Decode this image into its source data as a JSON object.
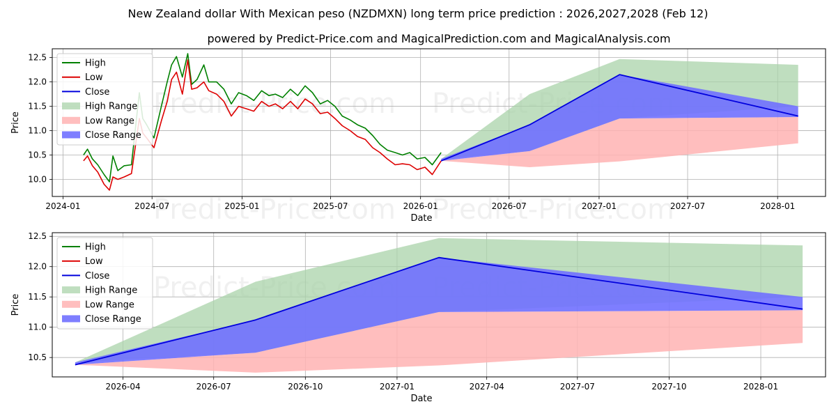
{
  "title": "New Zealand dollar With Mexican peso (NZDMXN) long term price prediction : 2026,2027,2028 (Feb 12)",
  "subtitle": "powered by Predict-Price.com and MagicalPrediction.com and MagicalAnalysis.com",
  "watermark": "Predict-Price.com",
  "colors": {
    "high": "#008000",
    "low": "#dd0000",
    "close": "#0000dd",
    "high_range": "#a9d3a9",
    "low_range": "#ffb3b3",
    "close_range": "#7070ff",
    "grid": "#b0b0b0"
  },
  "chart_data": [
    {
      "type": "line",
      "panel": "top",
      "xlabel": "Date",
      "ylabel": "Price",
      "xlim": [
        "2023-12-10",
        "2028-04-08"
      ],
      "ylim": [
        9.65,
        12.68
      ],
      "grid": true,
      "legend_location": "upper-left",
      "x_ticks": [
        {
          "date": "2024-01-01",
          "label": "2024-01"
        },
        {
          "date": "2024-07-01",
          "label": "2024-07"
        },
        {
          "date": "2025-01-01",
          "label": "2025-01"
        },
        {
          "date": "2025-07-01",
          "label": "2025-07"
        },
        {
          "date": "2026-01-01",
          "label": "2026-01"
        },
        {
          "date": "2026-07-01",
          "label": "2026-07"
        },
        {
          "date": "2027-01-01",
          "label": "2027-01"
        },
        {
          "date": "2027-07-01",
          "label": "2027-07"
        },
        {
          "date": "2028-01-01",
          "label": "2028-01"
        }
      ],
      "y_ticks": [
        {
          "value": 10.0,
          "label": "10.0"
        },
        {
          "value": 10.5,
          "label": "10.5"
        },
        {
          "value": 11.0,
          "label": "11.0"
        },
        {
          "value": 11.5,
          "label": "11.5"
        },
        {
          "value": 12.0,
          "label": "12.0"
        },
        {
          "value": 12.5,
          "label": "12.5"
        }
      ],
      "legend": [
        "High",
        "Low",
        "Close",
        "High Range",
        "Low Range",
        "Close Range"
      ],
      "historical": {
        "dates": [
          "2024-02-12",
          "2024-02-20",
          "2024-03-01",
          "2024-03-12",
          "2024-03-25",
          "2024-04-05",
          "2024-04-12",
          "2024-04-22",
          "2024-05-05",
          "2024-05-20",
          "2024-06-05",
          "2024-06-12",
          "2024-06-20",
          "2024-07-05",
          "2024-07-20",
          "2024-08-01",
          "2024-08-10",
          "2024-08-20",
          "2024-09-01",
          "2024-09-12",
          "2024-09-20",
          "2024-10-01",
          "2024-10-15",
          "2024-10-25",
          "2024-11-10",
          "2024-11-25",
          "2024-12-10",
          "2024-12-25",
          "2025-01-10",
          "2025-01-25",
          "2025-02-10",
          "2025-02-25",
          "2025-03-10",
          "2025-03-25",
          "2025-04-10",
          "2025-04-25",
          "2025-05-10",
          "2025-05-25",
          "2025-06-10",
          "2025-06-25",
          "2025-07-10",
          "2025-07-25",
          "2025-08-10",
          "2025-08-25",
          "2025-09-10",
          "2025-09-25",
          "2025-10-10",
          "2025-10-25",
          "2025-11-10",
          "2025-11-25",
          "2025-12-10",
          "2025-12-25",
          "2026-01-10",
          "2026-01-25",
          "2026-02-12"
        ],
        "high": [
          10.5,
          10.62,
          10.42,
          10.3,
          10.1,
          9.95,
          10.48,
          10.18,
          10.28,
          10.3,
          11.78,
          11.25,
          11.12,
          10.85,
          11.5,
          12.0,
          12.35,
          12.52,
          12.1,
          12.58,
          11.95,
          12.05,
          12.35,
          12.0,
          12.0,
          11.85,
          11.55,
          11.78,
          11.72,
          11.62,
          11.82,
          11.72,
          11.75,
          11.68,
          11.85,
          11.72,
          11.92,
          11.78,
          11.55,
          11.62,
          11.5,
          11.3,
          11.22,
          11.12,
          11.05,
          10.9,
          10.72,
          10.6,
          10.55,
          10.5,
          10.55,
          10.42,
          10.45,
          10.3,
          10.55
        ],
        "low": [
          10.38,
          10.48,
          10.28,
          10.15,
          9.9,
          9.78,
          10.05,
          10.0,
          10.05,
          10.12,
          11.25,
          10.95,
          10.85,
          10.65,
          11.2,
          11.6,
          12.05,
          12.2,
          11.75,
          12.45,
          11.85,
          11.88,
          12.0,
          11.82,
          11.75,
          11.6,
          11.3,
          11.5,
          11.45,
          11.4,
          11.6,
          11.5,
          11.55,
          11.45,
          11.6,
          11.45,
          11.65,
          11.55,
          11.35,
          11.38,
          11.25,
          11.1,
          11.0,
          10.88,
          10.82,
          10.65,
          10.55,
          10.42,
          10.3,
          10.32,
          10.3,
          10.2,
          10.25,
          10.1,
          10.38
        ]
      },
      "forecast": {
        "dates": [
          "2026-02-12",
          "2026-08-12",
          "2027-02-12",
          "2028-02-12"
        ],
        "high_range_upper": [
          10.42,
          11.75,
          12.47,
          12.35
        ],
        "high_range_lower": [
          10.42,
          10.58,
          11.25,
          11.5
        ],
        "low_range_upper": [
          10.38,
          10.58,
          11.25,
          11.28
        ],
        "low_range_lower": [
          10.38,
          10.25,
          10.37,
          10.74
        ],
        "close_range_upper": [
          10.42,
          11.12,
          12.15,
          11.5
        ],
        "close_range_lower": [
          10.38,
          10.58,
          11.25,
          11.28
        ],
        "close": [
          10.38,
          11.12,
          12.15,
          11.3
        ]
      }
    },
    {
      "type": "line",
      "panel": "bottom",
      "xlabel": "Date",
      "ylabel": "Price",
      "xlim": [
        "2026-01-20",
        "2028-03-06"
      ],
      "ylim": [
        10.18,
        12.56
      ],
      "grid": true,
      "legend_location": "upper-left",
      "x_ticks": [
        {
          "date": "2026-04-01",
          "label": "2026-04"
        },
        {
          "date": "2026-07-01",
          "label": "2026-07"
        },
        {
          "date": "2026-10-01",
          "label": "2026-10"
        },
        {
          "date": "2027-01-01",
          "label": "2027-01"
        },
        {
          "date": "2027-04-01",
          "label": "2027-04"
        },
        {
          "date": "2027-07-01",
          "label": "2027-07"
        },
        {
          "date": "2027-10-01",
          "label": "2027-10"
        },
        {
          "date": "2028-01-01",
          "label": "2028-01"
        }
      ],
      "y_ticks": [
        {
          "value": 10.5,
          "label": "10.5"
        },
        {
          "value": 11.0,
          "label": "11.0"
        },
        {
          "value": 11.5,
          "label": "11.5"
        },
        {
          "value": 12.0,
          "label": "12.0"
        },
        {
          "value": 12.5,
          "label": "12.5"
        }
      ],
      "legend": [
        "High",
        "Low",
        "Close",
        "High Range",
        "Low Range",
        "Close Range"
      ],
      "forecast": {
        "dates": [
          "2026-02-12",
          "2026-08-12",
          "2027-02-12",
          "2028-02-12"
        ],
        "high_range_upper": [
          10.42,
          11.75,
          12.47,
          12.35
        ],
        "high_range_lower": [
          10.42,
          10.58,
          11.25,
          11.5
        ],
        "low_range_upper": [
          10.38,
          10.58,
          11.25,
          11.28
        ],
        "low_range_lower": [
          10.38,
          10.25,
          10.37,
          10.74
        ],
        "close_range_upper": [
          10.42,
          11.12,
          12.15,
          11.5
        ],
        "close_range_lower": [
          10.38,
          10.58,
          11.25,
          11.28
        ],
        "close": [
          10.38,
          11.12,
          12.15,
          11.3
        ]
      }
    }
  ]
}
